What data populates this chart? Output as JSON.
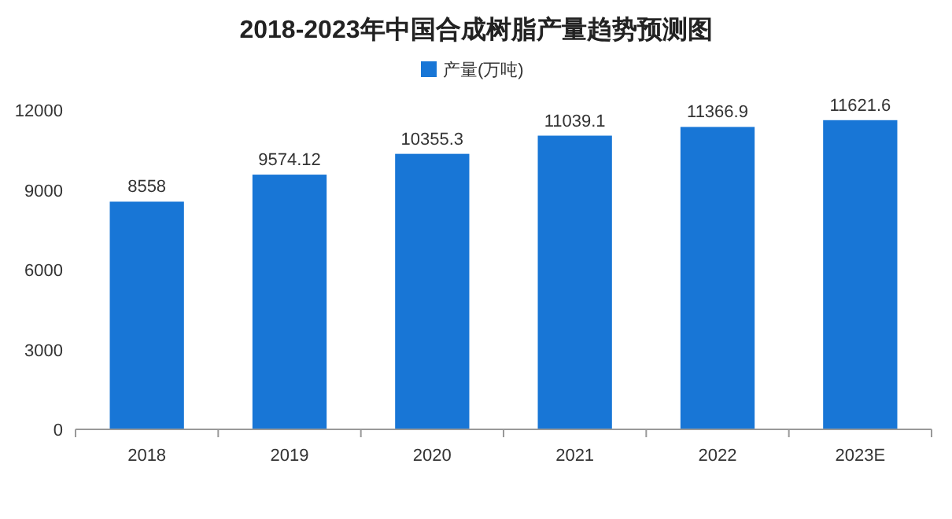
{
  "chart_data": {
    "type": "bar",
    "title": "2018-2023年中国合成树脂产量趋势预测图",
    "categories": [
      "2018",
      "2019",
      "2020",
      "2021",
      "2022",
      "2023E"
    ],
    "series": [
      {
        "name": "产量(万吨)",
        "color": "#1876d6",
        "values": [
          8558,
          9574.12,
          10355.3,
          11039.1,
          11366.9,
          11621.6
        ]
      }
    ],
    "ylim": [
      0,
      12000
    ],
    "yticks": [
      0,
      3000,
      6000,
      9000,
      12000
    ],
    "data_labels": true,
    "legend": "top"
  }
}
